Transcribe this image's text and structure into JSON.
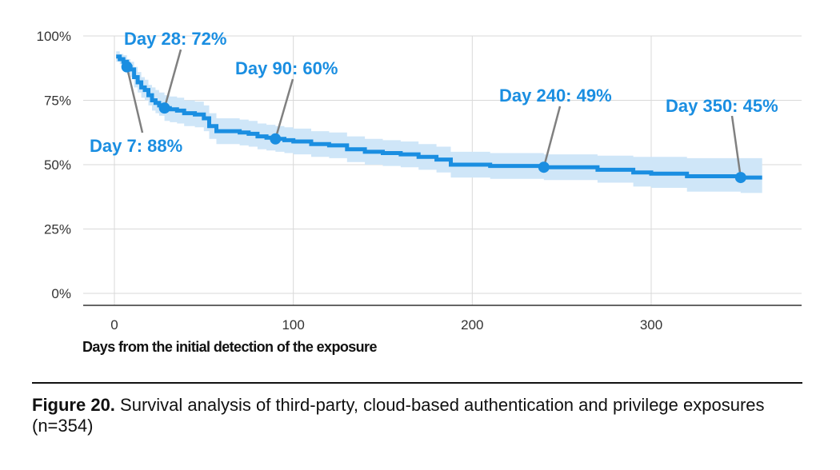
{
  "chart_data": {
    "type": "line",
    "title": "",
    "xlabel": "Days from the initial detection of the exposure",
    "ylabel": "",
    "xlim": [
      -15,
      385
    ],
    "ylim": [
      0,
      100
    ],
    "xticks": [
      0,
      100,
      200,
      300
    ],
    "yticks": [
      0,
      25,
      50,
      75,
      100
    ],
    "ytick_labels": [
      "0%",
      "25%",
      "50%",
      "75%",
      "100%"
    ],
    "grid": true,
    "line_color": "#1a8ee1",
    "band_color": "#cfe6f8",
    "annotation_color": "#1a8ee1",
    "pointer_color": "#808080",
    "series": [
      {
        "x": [
          1,
          3,
          5,
          7,
          9,
          11,
          13,
          15,
          17,
          19,
          21,
          23,
          25,
          28,
          31,
          35,
          39,
          45,
          50,
          53,
          57,
          60,
          65,
          70,
          75,
          80,
          85,
          90,
          95,
          100,
          110,
          120,
          130,
          140,
          150,
          160,
          170,
          180,
          188,
          200,
          210,
          220,
          240,
          260,
          270,
          290,
          300,
          320,
          340,
          350,
          362
        ],
        "y": [
          92,
          91,
          90,
          88,
          87,
          84,
          82,
          80,
          79,
          77,
          75,
          74,
          73,
          72,
          71.5,
          71,
          70,
          69.5,
          68,
          65,
          63,
          63,
          63,
          62.5,
          62,
          61,
          60.5,
          60,
          59.5,
          59,
          58,
          57.5,
          56,
          55,
          54.5,
          54,
          53,
          52,
          50,
          50,
          49.5,
          49.5,
          49,
          49,
          48,
          47,
          46.5,
          45.5,
          45.5,
          45,
          45
        ],
        "upper": [
          94,
          93,
          92.5,
          91,
          90,
          88,
          86,
          84,
          83,
          81,
          80,
          79,
          78,
          77,
          76.5,
          76,
          75,
          74.5,
          73,
          70,
          68,
          68,
          68,
          67.5,
          67,
          66,
          65.5,
          65,
          64.5,
          64,
          63,
          62.5,
          61,
          60,
          59.5,
          59,
          58,
          57,
          55,
          55,
          54.5,
          54.5,
          54,
          54,
          53.5,
          53,
          53,
          52.5,
          52.5,
          52.5,
          52.5
        ],
        "lower": [
          90,
          89,
          87.5,
          85,
          84,
          80,
          78,
          76,
          75,
          73,
          71,
          70,
          69,
          67,
          66.5,
          66,
          65,
          64.5,
          63,
          60,
          58,
          58,
          58,
          57.5,
          57,
          56,
          55.5,
          55,
          54.5,
          54,
          53,
          52.5,
          51,
          50,
          49.5,
          49,
          48,
          47,
          45,
          45,
          44.5,
          44.5,
          44,
          44,
          43,
          41.5,
          41,
          39.5,
          39.5,
          39,
          39
        ]
      }
    ],
    "annotations": [
      {
        "text": "Day 7: 88%",
        "x": 7,
        "y": 88,
        "anchor": "below-left"
      },
      {
        "text": "Day 28: 72%",
        "x": 28,
        "y": 72,
        "anchor": "above"
      },
      {
        "text": "Day 90: 60%",
        "x": 90,
        "y": 60,
        "anchor": "above"
      },
      {
        "text": "Day 240: 49%",
        "x": 240,
        "y": 49,
        "anchor": "above"
      },
      {
        "text": "Day 350: 45%",
        "x": 350,
        "y": 45,
        "anchor": "above"
      }
    ]
  },
  "caption": {
    "label": "Figure 20.",
    "text": " Survival analysis of third-party, cloud-based authentication and privilege exposures (n=354)"
  }
}
